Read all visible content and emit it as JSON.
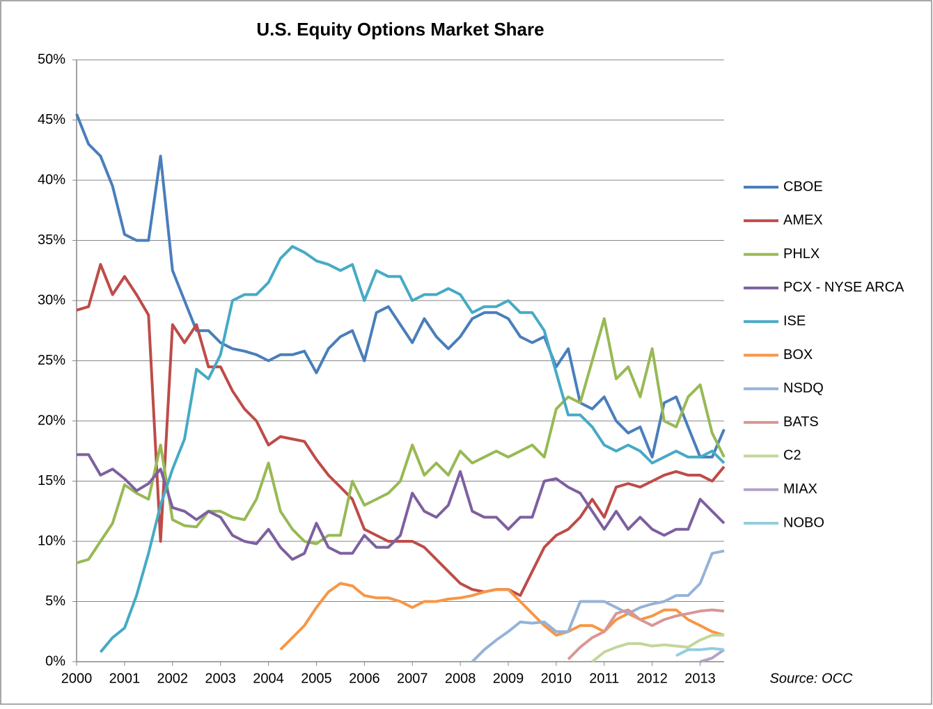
{
  "chart_data": {
    "type": "line",
    "title": "U.S. Equity Options Market Share",
    "annotation": "Source: OCC",
    "grid": true,
    "legend": "right",
    "xlim": [
      2000,
      2013.5
    ],
    "xticks": [
      2000,
      2001,
      2002,
      2003,
      2004,
      2005,
      2006,
      2007,
      2008,
      2009,
      2010,
      2011,
      2012,
      2013
    ],
    "ylim": [
      0,
      50
    ],
    "yticks": [
      {
        "value": 0,
        "label": "0%"
      },
      {
        "value": 5,
        "label": "5%"
      },
      {
        "value": 10,
        "label": "10%"
      },
      {
        "value": 15,
        "label": "15%"
      },
      {
        "value": 20,
        "label": "20%"
      },
      {
        "value": 25,
        "label": "25%"
      },
      {
        "value": 30,
        "label": "30%"
      },
      {
        "value": 35,
        "label": "35%"
      },
      {
        "value": 40,
        "label": "40%"
      },
      {
        "value": 45,
        "label": "45%"
      },
      {
        "value": 50,
        "label": "50%"
      }
    ],
    "x": [
      2000,
      2000.25,
      2000.5,
      2000.75,
      2001,
      2001.25,
      2001.5,
      2001.75,
      2002,
      2002.25,
      2002.5,
      2002.75,
      2003,
      2003.25,
      2003.5,
      2003.75,
      2004,
      2004.25,
      2004.5,
      2004.75,
      2005,
      2005.25,
      2005.5,
      2005.75,
      2006,
      2006.25,
      2006.5,
      2006.75,
      2007,
      2007.25,
      2007.5,
      2007.75,
      2008,
      2008.25,
      2008.5,
      2008.75,
      2009,
      2009.25,
      2009.5,
      2009.75,
      2010,
      2010.25,
      2010.5,
      2010.75,
      2011,
      2011.25,
      2011.5,
      2011.75,
      2012,
      2012.25,
      2012.5,
      2012.75,
      2013,
      2013.25,
      2013.5
    ],
    "series": [
      {
        "name": "CBOE",
        "color": "#4a7ebb",
        "values": [
          45.5,
          43,
          42,
          39.5,
          35.5,
          35,
          35,
          42,
          32.5,
          30,
          27.5,
          27.5,
          26.5,
          26,
          25.8,
          25.5,
          25,
          25.5,
          25.5,
          25.8,
          24,
          26,
          27,
          27.5,
          25,
          29,
          29.5,
          28,
          26.5,
          28.5,
          27,
          26,
          27,
          28.5,
          29,
          29,
          28.5,
          27,
          26.5,
          27,
          24.5,
          26,
          21.5,
          21,
          22,
          20,
          19,
          19.5,
          17,
          21.5,
          22,
          19.5,
          17,
          17,
          19.3
        ]
      },
      {
        "name": "AMEX",
        "color": "#be4b48",
        "values": [
          29.2,
          29.5,
          33,
          30.5,
          32,
          30.5,
          28.8,
          10,
          28,
          26.5,
          28,
          24.5,
          24.5,
          22.5,
          21,
          20,
          18,
          18.7,
          18.5,
          18.3,
          16.8,
          15.5,
          14.5,
          13.5,
          11,
          10.5,
          10,
          10,
          10,
          9.5,
          8.5,
          7.5,
          6.5,
          6,
          5.8,
          6,
          6,
          5.5,
          7.5,
          9.5,
          10.5,
          11,
          12,
          13.5,
          12,
          14.5,
          14.8,
          14.5,
          15,
          15.5,
          15.8,
          15.5,
          15.5,
          15,
          16.2
        ]
      },
      {
        "name": "PHLX",
        "color": "#98b954",
        "values": [
          8.2,
          8.5,
          10,
          11.5,
          14.7,
          14,
          13.5,
          18,
          11.8,
          11.3,
          11.2,
          12.5,
          12.5,
          12,
          11.8,
          13.5,
          16.5,
          12.5,
          11,
          10,
          9.8,
          10.5,
          10.5,
          15,
          13,
          13.5,
          14,
          15,
          18,
          15.5,
          16.5,
          15.5,
          17.5,
          16.5,
          17,
          17.5,
          17,
          17.5,
          18,
          17,
          21,
          22,
          21.5,
          25,
          28.5,
          23.5,
          24.5,
          22,
          26,
          20,
          19.5,
          22,
          23,
          19,
          17
        ]
      },
      {
        "name": "PCX - NYSE ARCA",
        "color": "#7d60a0",
        "values": [
          17.2,
          17.2,
          15.5,
          16,
          15.2,
          14.2,
          14.8,
          16,
          12.8,
          12.5,
          11.8,
          12.5,
          12,
          10.5,
          10,
          9.8,
          11,
          9.5,
          8.5,
          9,
          11.5,
          9.5,
          9,
          9,
          10.5,
          9.5,
          9.5,
          10.5,
          14,
          12.5,
          12,
          13,
          15.8,
          12.5,
          12,
          12,
          11,
          12,
          12,
          15,
          15.2,
          14.5,
          14,
          12.5,
          11,
          12.5,
          11,
          12,
          11,
          10.5,
          11,
          11,
          13.5,
          12.5,
          11.5
        ]
      },
      {
        "name": "ISE",
        "color": "#46aac5",
        "values": [
          null,
          null,
          0.8,
          2,
          2.8,
          5.5,
          9,
          13,
          16,
          18.5,
          24.3,
          23.5,
          25.5,
          30,
          30.5,
          30.5,
          31.5,
          33.5,
          34.5,
          34,
          33.3,
          33,
          32.5,
          33,
          30,
          32.5,
          32,
          32,
          30,
          30.5,
          30.5,
          31,
          30.5,
          29,
          29.5,
          29.5,
          30,
          29,
          29,
          27.5,
          24,
          20.5,
          20.5,
          19.5,
          18,
          17.5,
          18,
          17.5,
          16.5,
          17,
          17.5,
          17,
          17,
          17.5,
          16.5
        ]
      },
      {
        "name": "BOX",
        "color": "#f79646",
        "values": [
          null,
          null,
          null,
          null,
          null,
          null,
          null,
          null,
          null,
          null,
          null,
          null,
          null,
          null,
          null,
          null,
          null,
          1,
          2,
          3,
          4.5,
          5.8,
          6.5,
          6.3,
          5.5,
          5.3,
          5.3,
          5,
          4.5,
          5,
          5,
          5.2,
          5.3,
          5.5,
          5.8,
          6,
          6,
          5,
          4,
          3,
          2.2,
          2.5,
          3,
          3,
          2.5,
          3.5,
          4,
          3.5,
          3.8,
          4.3,
          4.3,
          3.5,
          3,
          2.5,
          2.2
        ]
      },
      {
        "name": "NSDQ",
        "color": "#95b3d7",
        "values": [
          null,
          null,
          null,
          null,
          null,
          null,
          null,
          null,
          null,
          null,
          null,
          null,
          null,
          null,
          null,
          null,
          null,
          null,
          null,
          null,
          null,
          null,
          null,
          null,
          null,
          null,
          null,
          null,
          null,
          null,
          null,
          null,
          null,
          0,
          1,
          1.8,
          2.5,
          3.3,
          3.2,
          3.3,
          2.5,
          2.5,
          5,
          5,
          5,
          4.5,
          4,
          4.5,
          4.8,
          5,
          5.5,
          5.5,
          6.5,
          9,
          9.2
        ]
      },
      {
        "name": "BATS",
        "color": "#d99694",
        "values": [
          null,
          null,
          null,
          null,
          null,
          null,
          null,
          null,
          null,
          null,
          null,
          null,
          null,
          null,
          null,
          null,
          null,
          null,
          null,
          null,
          null,
          null,
          null,
          null,
          null,
          null,
          null,
          null,
          null,
          null,
          null,
          null,
          null,
          null,
          null,
          null,
          null,
          null,
          null,
          null,
          null,
          0.2,
          1.2,
          2,
          2.5,
          4,
          4.3,
          3.5,
          3,
          3.5,
          3.8,
          4,
          4.2,
          4.3,
          4.2
        ]
      },
      {
        "name": "C2",
        "color": "#c3d69b",
        "values": [
          null,
          null,
          null,
          null,
          null,
          null,
          null,
          null,
          null,
          null,
          null,
          null,
          null,
          null,
          null,
          null,
          null,
          null,
          null,
          null,
          null,
          null,
          null,
          null,
          null,
          null,
          null,
          null,
          null,
          null,
          null,
          null,
          null,
          null,
          null,
          null,
          null,
          null,
          null,
          null,
          null,
          null,
          null,
          0,
          0.8,
          1.2,
          1.5,
          1.5,
          1.3,
          1.4,
          1.3,
          1.2,
          1.8,
          2.2,
          2.2
        ]
      },
      {
        "name": "MIAX",
        "color": "#b3a2c7",
        "values": [
          null,
          null,
          null,
          null,
          null,
          null,
          null,
          null,
          null,
          null,
          null,
          null,
          null,
          null,
          null,
          null,
          null,
          null,
          null,
          null,
          null,
          null,
          null,
          null,
          null,
          null,
          null,
          null,
          null,
          null,
          null,
          null,
          null,
          null,
          null,
          null,
          null,
          null,
          null,
          null,
          null,
          null,
          null,
          null,
          null,
          null,
          null,
          null,
          null,
          null,
          null,
          null,
          0,
          0.3,
          1
        ]
      },
      {
        "name": "NOBO",
        "color": "#93cddd",
        "values": [
          null,
          null,
          null,
          null,
          null,
          null,
          null,
          null,
          null,
          null,
          null,
          null,
          null,
          null,
          null,
          null,
          null,
          null,
          null,
          null,
          null,
          null,
          null,
          null,
          null,
          null,
          null,
          null,
          null,
          null,
          null,
          null,
          null,
          null,
          null,
          null,
          null,
          null,
          null,
          null,
          null,
          null,
          null,
          null,
          null,
          null,
          null,
          null,
          null,
          null,
          0.5,
          1,
          1,
          1.1,
          1
        ]
      }
    ]
  }
}
